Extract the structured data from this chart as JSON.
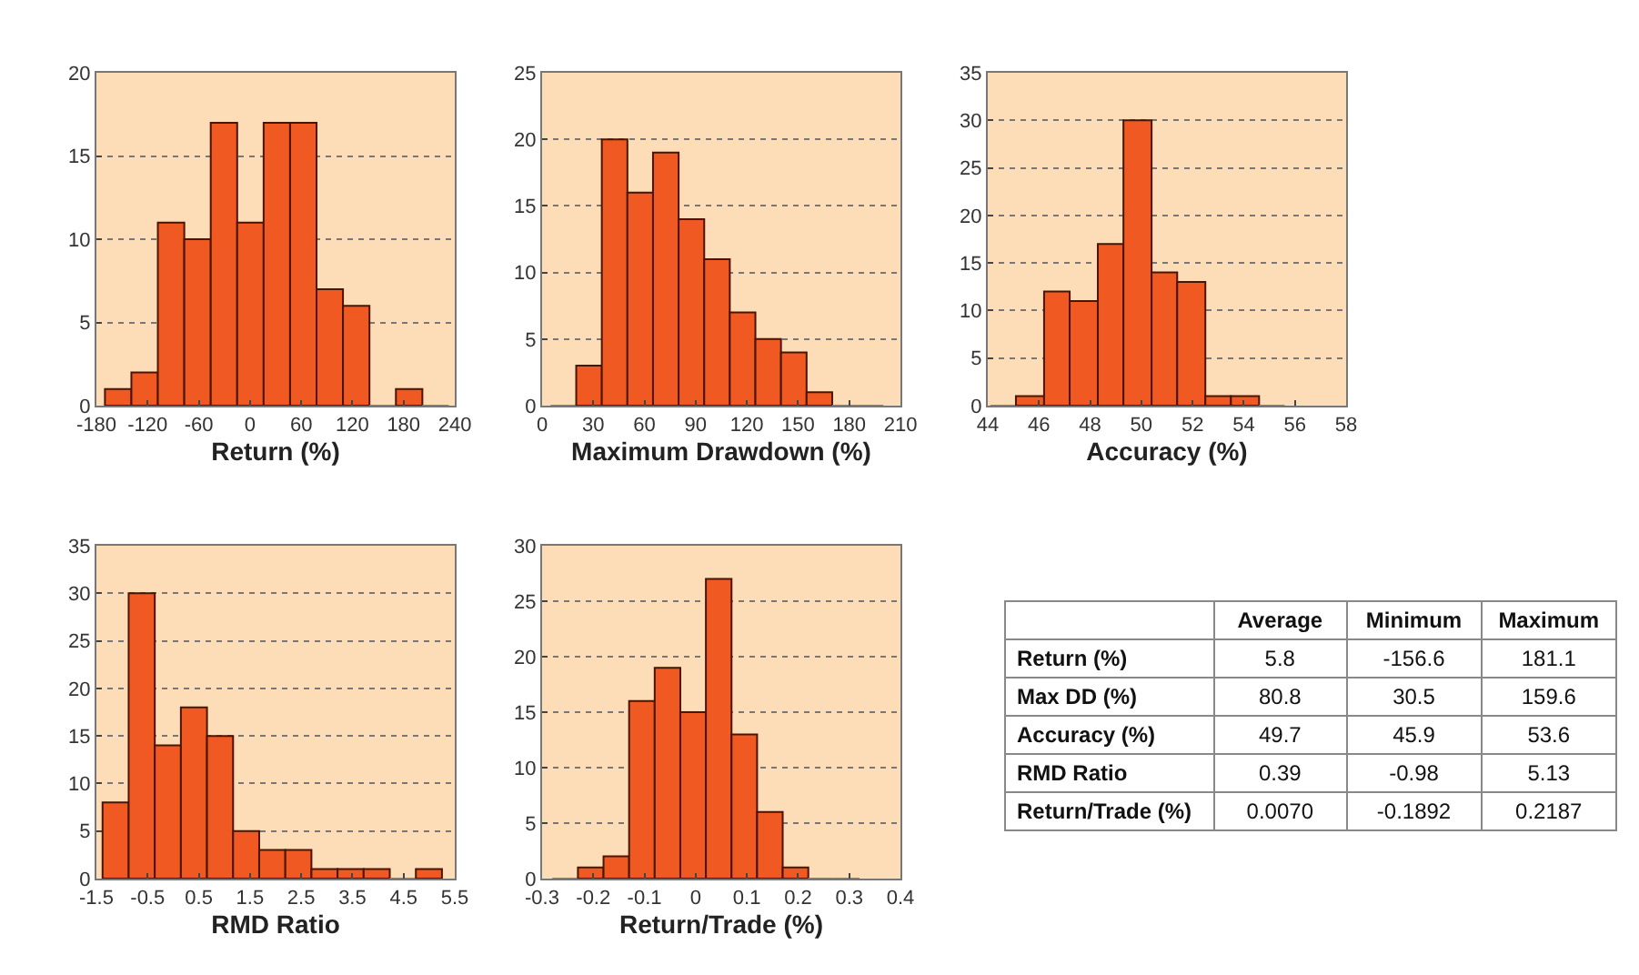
{
  "chart_data": [
    {
      "type": "histogram",
      "xlabel": "Return (%)",
      "color": "#f05a22",
      "grid": "y",
      "bins": [
        -170,
        -139,
        -108,
        -77,
        -46,
        -15,
        16,
        47,
        78,
        109,
        140,
        171,
        202,
        233
      ],
      "values": [
        1,
        2,
        11,
        10,
        17,
        11,
        17,
        17,
        7,
        6,
        0,
        1,
        0
      ],
      "xlim": [
        -180,
        240
      ],
      "xticks": [
        -180,
        -120,
        -60,
        0,
        60,
        120,
        180,
        240
      ],
      "ylim": [
        0,
        20
      ],
      "yticks": [
        0,
        5,
        10,
        15,
        20
      ]
    },
    {
      "type": "histogram",
      "xlabel": "Maximum Drawdown (%)",
      "color": "#f05a22",
      "grid": "y",
      "bins": [
        5,
        20,
        35,
        50,
        65,
        80,
        95,
        110,
        125,
        140,
        155,
        170,
        185,
        200
      ],
      "values": [
        0,
        3,
        20,
        16,
        19,
        14,
        11,
        7,
        5,
        4,
        1,
        0,
        0
      ],
      "xlim": [
        0,
        210
      ],
      "xticks": [
        0,
        30,
        60,
        90,
        120,
        150,
        180,
        210
      ],
      "ylim": [
        0,
        25
      ],
      "yticks": [
        0,
        5,
        10,
        15,
        20,
        25
      ]
    },
    {
      "type": "histogram",
      "xlabel": "Accuracy (%)",
      "color": "#f05a22",
      "grid": "y",
      "bins": [
        44.1,
        45.1,
        46.2,
        47.2,
        48.3,
        49.3,
        50.4,
        51.4,
        52.5,
        53.5,
        54.6,
        55.6
      ],
      "values": [
        0,
        1,
        12,
        11,
        17,
        30,
        14,
        13,
        1,
        1,
        0
      ],
      "xlim": [
        44,
        58
      ],
      "xticks": [
        44,
        46,
        48,
        50,
        52,
        54,
        56,
        58
      ],
      "ylim": [
        0,
        35
      ],
      "yticks": [
        0,
        5,
        10,
        15,
        20,
        25,
        30,
        35
      ]
    },
    {
      "type": "histogram",
      "xlabel": "RMD Ratio",
      "color": "#f05a22",
      "grid": "y",
      "bins": [
        -1.38,
        -0.87,
        -0.36,
        0.15,
        0.66,
        1.17,
        1.68,
        2.19,
        2.7,
        3.21,
        3.72,
        4.23,
        4.74,
        5.25
      ],
      "values": [
        8,
        30,
        14,
        18,
        15,
        5,
        3,
        3,
        1,
        1,
        1,
        0,
        1
      ],
      "xlim": [
        -1.5,
        5.5
      ],
      "xticks": [
        -1.5,
        -0.5,
        0.5,
        1.5,
        2.5,
        3.5,
        4.5,
        5.5
      ],
      "ylim": [
        0,
        35
      ],
      "yticks": [
        0,
        5,
        10,
        15,
        20,
        25,
        30,
        35
      ]
    },
    {
      "type": "histogram",
      "xlabel": "Return/Trade (%)",
      "color": "#f05a22",
      "grid": "y",
      "bins": [
        -0.28,
        -0.23,
        -0.18,
        -0.13,
        -0.08,
        -0.03,
        0.02,
        0.07,
        0.12,
        0.17,
        0.22,
        0.27,
        0.32
      ],
      "values": [
        0,
        1,
        2,
        16,
        19,
        15,
        27,
        13,
        6,
        1,
        0,
        0
      ],
      "xlim": [
        -0.3,
        0.4
      ],
      "xticks": [
        -0.3,
        -0.2,
        -0.1,
        0,
        0.1,
        0.2,
        0.3,
        0.4
      ],
      "ylim": [
        0,
        30
      ],
      "yticks": [
        0,
        5,
        10,
        15,
        20,
        25,
        30
      ]
    },
    {
      "type": "other",
      "categories": [
        "Return (%)",
        "Max DD (%)",
        "Accuracy (%)",
        "RMD Ratio",
        "Return/Trade (%)"
      ],
      "series": [
        {
          "name": "Average",
          "values": [
            5.8,
            80.8,
            49.7,
            0.39,
            0.007
          ],
          "value_labels": [
            "5.8",
            "80.8",
            "49.7",
            "0.39",
            "0.0070"
          ]
        },
        {
          "name": "Minimum",
          "values": [
            -156.6,
            30.5,
            45.9,
            -0.98,
            -0.1892
          ],
          "value_labels": [
            "-156.6",
            "30.5",
            "45.9",
            "-0.98",
            "-0.1892"
          ]
        },
        {
          "name": "Maximum",
          "values": [
            181.1,
            159.6,
            53.6,
            5.13,
            0.2187
          ],
          "value_labels": [
            "181.1",
            "159.6",
            "53.6",
            "5.13",
            "0.2187"
          ]
        }
      ]
    }
  ]
}
